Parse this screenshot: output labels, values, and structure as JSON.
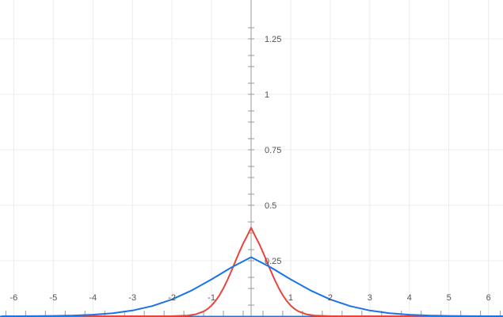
{
  "chart_data": {
    "type": "line",
    "title": "",
    "xlabel": "",
    "ylabel": "",
    "xlim": [
      -6.3,
      6.4
    ],
    "ylim": [
      -0.005,
      1.37
    ],
    "grid": true,
    "legend": "none",
    "colors": {
      "grid": "#ececec",
      "axis": "#999999",
      "tick_text": "#555555",
      "x_axis_line": "#1a73e8"
    },
    "x_ticks": [
      -6,
      -5,
      -4,
      -3,
      -2,
      -1,
      1,
      2,
      3,
      4,
      5,
      6
    ],
    "x_tick_labels": [
      "-6",
      "-5",
      "-4",
      "-3",
      "-2",
      "-1",
      "1",
      "2",
      "3",
      "4",
      "5",
      "6"
    ],
    "y_ticks": [
      0.25,
      0.5,
      0.75,
      1,
      1.25
    ],
    "y_tick_labels": [
      "0.25",
      "0.5",
      "0.75",
      "1",
      "1.25"
    ],
    "series": [
      {
        "color": "#e8453c",
        "x": [
          -6,
          -5,
          -4,
          -3,
          -2,
          -1.6,
          -1.4,
          -1.2,
          -1.1,
          -1,
          -0.9,
          -0.8,
          -0.7,
          -0.6,
          -0.5,
          -0.4,
          -0.3,
          -0.2,
          -0.1,
          0,
          0.1,
          0.2,
          0.3,
          0.4,
          0.5,
          0.6,
          0.7,
          0.8,
          0.9,
          1,
          1.1,
          1.2,
          1.4,
          1.6,
          2,
          3,
          4,
          5,
          6
        ],
        "y": [
          0,
          0,
          0,
          0,
          0.0003,
          0.003,
          0.0086,
          0.0216,
          0.0328,
          0.0484,
          0.0688,
          0.0946,
          0.1262,
          0.1627,
          0.2032,
          0.2459,
          0.2883,
          0.3279,
          0.3621,
          0.3989,
          0.3621,
          0.3279,
          0.2883,
          0.2459,
          0.2032,
          0.1627,
          0.1262,
          0.0946,
          0.0688,
          0.0484,
          0.0328,
          0.0216,
          0.0086,
          0.003,
          0.0003,
          0,
          0,
          0,
          0
        ]
      },
      {
        "color": "#1a73e8",
        "x": [
          -6.3,
          -6,
          -5.5,
          -5,
          -4.5,
          -4,
          -3.5,
          -3,
          -2.5,
          -2,
          -1.5,
          -1,
          -0.5,
          0,
          0.5,
          1,
          1.5,
          2,
          2.5,
          3,
          3.5,
          4,
          4.5,
          5,
          5.5,
          6,
          6.4
        ],
        "y": [
          0.0001,
          0.0002,
          0.0006,
          0.0014,
          0.003,
          0.0067,
          0.0134,
          0.0257,
          0.0457,
          0.0757,
          0.1164,
          0.166,
          0.2195,
          0.2659,
          0.2195,
          0.166,
          0.1164,
          0.0757,
          0.0457,
          0.0257,
          0.0134,
          0.0067,
          0.003,
          0.0014,
          0.0006,
          0.0002,
          0.0001
        ]
      }
    ]
  }
}
